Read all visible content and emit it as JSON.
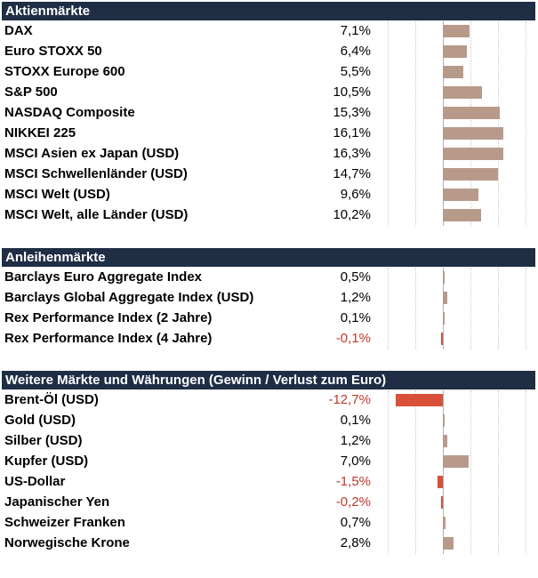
{
  "colors": {
    "header_bg": "#1f2d45",
    "positive_bar": "#b89a8a",
    "negative_bar": "#d9503a",
    "negative_text": "#c0392b"
  },
  "chart_data": {
    "type": "bar",
    "scale": {
      "zero": 0,
      "unit": "%"
    },
    "sections": [
      {
        "title": "Aktienmärkte",
        "rows": [
          {
            "label": "DAX",
            "value": 7.1,
            "display": "7,1%"
          },
          {
            "label": "Euro STOXX 50",
            "value": 6.4,
            "display": "6,4%"
          },
          {
            "label": "STOXX Europe 600",
            "value": 5.5,
            "display": "5,5%"
          },
          {
            "label": "S&P 500",
            "value": 10.5,
            "display": "10,5%"
          },
          {
            "label": "NASDAQ Composite",
            "value": 15.3,
            "display": "15,3%"
          },
          {
            "label": "NIKKEI 225",
            "value": 16.1,
            "display": "16,1%"
          },
          {
            "label": "MSCI Asien ex Japan (USD)",
            "value": 16.3,
            "display": "16,3%"
          },
          {
            "label": "MSCI Schwellenländer (USD)",
            "value": 14.7,
            "display": "14,7%"
          },
          {
            "label": "MSCI Welt (USD)",
            "value": 9.6,
            "display": "9,6%"
          },
          {
            "label": "MSCI Welt, alle Länder (USD)",
            "value": 10.2,
            "display": "10,2%"
          }
        ]
      },
      {
        "title": "Anleihenmärkte",
        "rows": [
          {
            "label": "Barclays Euro Aggregate Index",
            "value": 0.5,
            "display": "0,5%"
          },
          {
            "label": "Barclays Global Aggregate Index (USD)",
            "value": 1.2,
            "display": "1,2%"
          },
          {
            "label": "Rex Performance Index (2 Jahre)",
            "value": 0.1,
            "display": "0,1%"
          },
          {
            "label": "Rex Performance Index (4 Jahre)",
            "value": -0.1,
            "display": "-0,1%"
          }
        ]
      },
      {
        "title": "Weitere Märkte und Währungen (Gewinn / Verlust zum Euro)",
        "rows": [
          {
            "label": "Brent-Öl (USD)",
            "value": -12.7,
            "display": "-12,7%"
          },
          {
            "label": "Gold (USD)",
            "value": 0.1,
            "display": "0,1%"
          },
          {
            "label": "Silber (USD)",
            "value": 1.2,
            "display": "1,2%"
          },
          {
            "label": "Kupfer (USD)",
            "value": 7.0,
            "display": "7,0%"
          },
          {
            "label": "US-Dollar",
            "value": -1.5,
            "display": "-1,5%"
          },
          {
            "label": "Japanischer Yen",
            "value": -0.2,
            "display": "-0,2%"
          },
          {
            "label": "Schweizer Franken",
            "value": 0.7,
            "display": "0,7%"
          },
          {
            "label": "Norwegische Krone",
            "value": 2.8,
            "display": "2,8%"
          }
        ]
      }
    ]
  }
}
